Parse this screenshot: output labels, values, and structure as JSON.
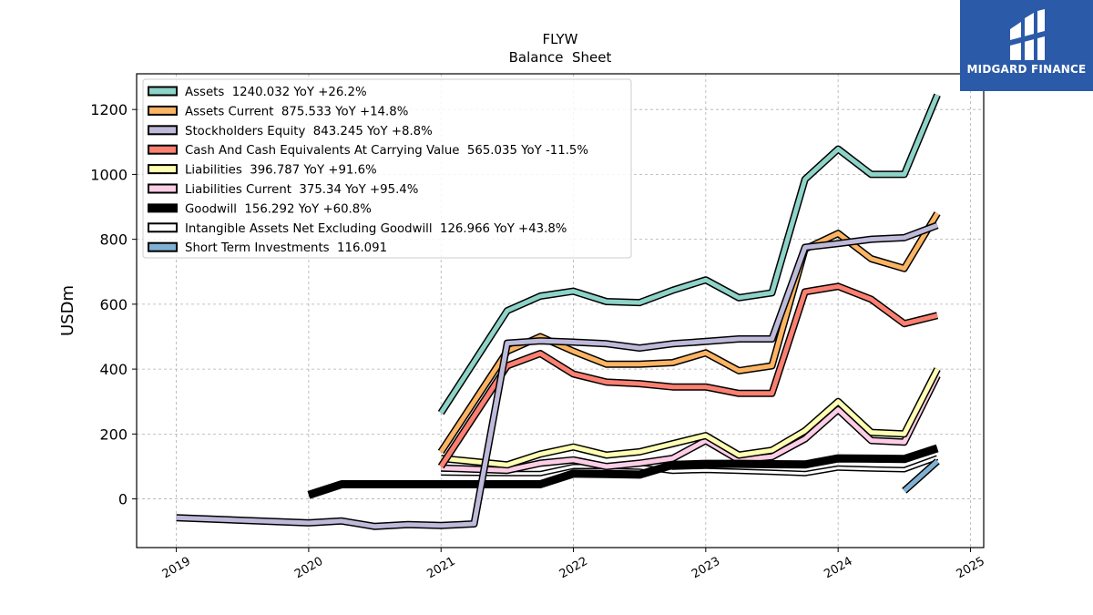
{
  "chart_data": {
    "type": "line",
    "title": "FLYW",
    "subtitle": "Balance  Sheet",
    "ylabel": "USDm",
    "xlabel": "",
    "xlim": [
      2018.7,
      2025.1
    ],
    "ylim": [
      -150,
      1310
    ],
    "x_ticks": [
      {
        "value": 2019,
        "label": "2019"
      },
      {
        "value": 2020,
        "label": "2020"
      },
      {
        "value": 2021,
        "label": "2021"
      },
      {
        "value": 2022,
        "label": "2022"
      },
      {
        "value": 2023,
        "label": "2023"
      },
      {
        "value": 2024,
        "label": "2024"
      },
      {
        "value": 2025,
        "label": "2025"
      }
    ],
    "y_ticks": [
      0,
      200,
      400,
      600,
      800,
      1000,
      1200
    ],
    "grid": true,
    "legend_position": "top-left",
    "series": [
      {
        "name": "Assets",
        "legend": "Assets  1240.032 YoY +26.2%",
        "color": "#8dd3c7",
        "width": 5,
        "x": [
          2021.0,
          2021.5,
          2021.75,
          2022.0,
          2022.25,
          2022.5,
          2022.75,
          2023.0,
          2023.25,
          2023.5,
          2023.75,
          2024.0,
          2024.25,
          2024.5,
          2024.75
        ],
        "y": [
          265,
          580,
          625,
          640,
          608,
          605,
          643,
          675,
          620,
          635,
          985,
          1078,
          1000,
          1000,
          1245
        ]
      },
      {
        "name": "Assets Current",
        "legend": "Assets Current  875.533 YoY +14.8%",
        "color": "#fdb462",
        "width": 5,
        "x": [
          2021.0,
          2021.5,
          2021.75,
          2022.0,
          2022.25,
          2022.5,
          2022.75,
          2023.0,
          2023.25,
          2023.5,
          2023.75,
          2024.0,
          2024.25,
          2024.5,
          2024.75
        ],
        "y": [
          145,
          455,
          500,
          455,
          415,
          415,
          420,
          450,
          395,
          410,
          770,
          818,
          740,
          710,
          880
        ]
      },
      {
        "name": "Stockholders Equity",
        "legend": "Stockholders Equity  843.245 YoY +8.8%",
        "color": "#bebada",
        "width": 5,
        "x": [
          2019.0,
          2020.0,
          2020.25,
          2020.5,
          2020.75,
          2021.0,
          2021.25,
          2021.5,
          2021.75,
          2022.0,
          2022.25,
          2022.5,
          2022.75,
          2023.0,
          2023.25,
          2023.5,
          2023.75,
          2024.0,
          2024.25,
          2024.5,
          2024.75
        ],
        "y": [
          -58,
          -74,
          -68,
          -85,
          -79,
          -82,
          -77,
          480,
          487,
          483,
          478,
          465,
          478,
          485,
          493,
          493,
          775,
          787,
          800,
          805,
          843
        ]
      },
      {
        "name": "Cash And Cash Equivalents At Carrying Value",
        "legend": "Cash And Cash Equivalents At Carrying Value  565.035 YoY -11.5%",
        "color": "#fb8072",
        "width": 5,
        "x": [
          2021.0,
          2021.5,
          2021.75,
          2022.0,
          2022.25,
          2022.5,
          2022.75,
          2023.0,
          2023.25,
          2023.5,
          2023.75,
          2024.0,
          2024.25,
          2024.5,
          2024.75
        ],
        "y": [
          100,
          410,
          448,
          385,
          360,
          355,
          345,
          345,
          325,
          325,
          638,
          655,
          615,
          540,
          565
        ]
      },
      {
        "name": "Liabilities",
        "legend": "Liabilities  396.787 YoY +91.6%",
        "color": "#ffffb3",
        "width": 5,
        "x": [
          2021.0,
          2021.5,
          2021.75,
          2022.0,
          2022.25,
          2022.5,
          2022.75,
          2023.0,
          2023.25,
          2023.5,
          2023.75,
          2024.0,
          2024.25,
          2024.5,
          2024.75
        ],
        "y": [
          125,
          105,
          138,
          160,
          135,
          145,
          170,
          195,
          135,
          150,
          210,
          300,
          205,
          200,
          400
        ]
      },
      {
        "name": "Liabilities Current",
        "legend": "Liabilities Current  375.34 YoY +95.4%",
        "color": "#fccde5",
        "width": 5,
        "x": [
          2021.0,
          2021.5,
          2021.75,
          2022.0,
          2022.25,
          2022.5,
          2022.75,
          2023.0,
          2023.25,
          2023.5,
          2023.75,
          2024.0,
          2024.25,
          2024.5,
          2024.75
        ],
        "y": [
          95,
          88,
          110,
          120,
          100,
          110,
          125,
          180,
          120,
          130,
          185,
          275,
          180,
          175,
          380
        ]
      },
      {
        "name": "Goodwill",
        "legend": "Goodwill  156.292 YoY +60.8%",
        "color": "#000000",
        "width": 9,
        "x": [
          2020.0,
          2020.25,
          2020.5,
          2020.75,
          2021.0,
          2021.25,
          2021.5,
          2021.75,
          2022.0,
          2022.25,
          2022.5,
          2022.75,
          2023.0,
          2023.25,
          2023.5,
          2023.75,
          2024.0,
          2024.25,
          2024.5,
          2024.75
        ],
        "y": [
          12,
          45,
          45,
          45,
          45,
          45,
          45,
          45,
          78,
          77,
          75,
          105,
          108,
          108,
          107,
          106,
          125,
          124,
          123,
          156
        ]
      },
      {
        "name": "Intangible Assets Net Excluding Goodwill",
        "legend": "Intangible Assets Net Excluding Goodwill  126.966 YoY +43.8%",
        "color": "#ffffff",
        "width": 3,
        "x": [
          2021.0,
          2021.5,
          2021.75,
          2022.0,
          2022.25,
          2022.5,
          2022.75,
          2023.0,
          2023.25,
          2023.5,
          2023.75,
          2024.0,
          2024.25,
          2024.5,
          2024.75
        ],
        "y": [
          80,
          78,
          78,
          100,
          100,
          98,
          85,
          88,
          85,
          82,
          78,
          95,
          92,
          90,
          127
        ]
      },
      {
        "name": "Short Term Investments",
        "legend": "Short Term Investments  116.091",
        "color": "#80b1d3",
        "width": 5,
        "x": [
          2024.5,
          2024.75
        ],
        "y": [
          25,
          116
        ]
      }
    ]
  },
  "brand": {
    "name": "MIDGARD FINANCE",
    "color": "#2b5aa8"
  }
}
